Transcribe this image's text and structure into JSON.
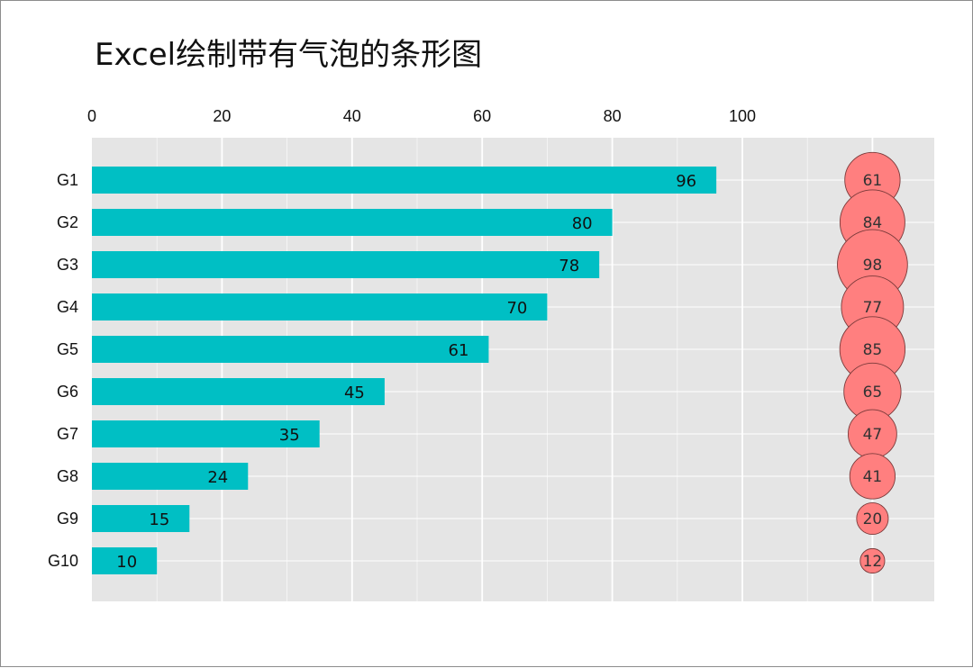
{
  "chart_data": {
    "type": "bar",
    "title": "Excel绘制带有气泡的条形图",
    "orientation": "horizontal",
    "x_axis_position": "top",
    "xlim": [
      0,
      130
    ],
    "xticks": [
      0,
      20,
      40,
      60,
      80,
      100
    ],
    "grid": true,
    "categories": [
      "G1",
      "G2",
      "G3",
      "G4",
      "G5",
      "G6",
      "G7",
      "G8",
      "G9",
      "G10"
    ],
    "series": [
      {
        "kind": "bar",
        "color": "#00BFC4",
        "values": [
          96,
          80,
          78,
          70,
          61,
          45,
          35,
          24,
          15,
          10
        ]
      },
      {
        "kind": "bubble",
        "color": "#F8766D",
        "fill": "#FF7F7F",
        "x_position": 120,
        "values": [
          61,
          84,
          98,
          77,
          85,
          65,
          47,
          41,
          20,
          12
        ]
      }
    ]
  },
  "colors": {
    "panel_background": "#E5E5E5",
    "grid": "#FFFFFF",
    "bar": "#00BFC4",
    "bubble_fill": "#FF7F7F",
    "bubble_stroke": "#7A3A3A"
  }
}
